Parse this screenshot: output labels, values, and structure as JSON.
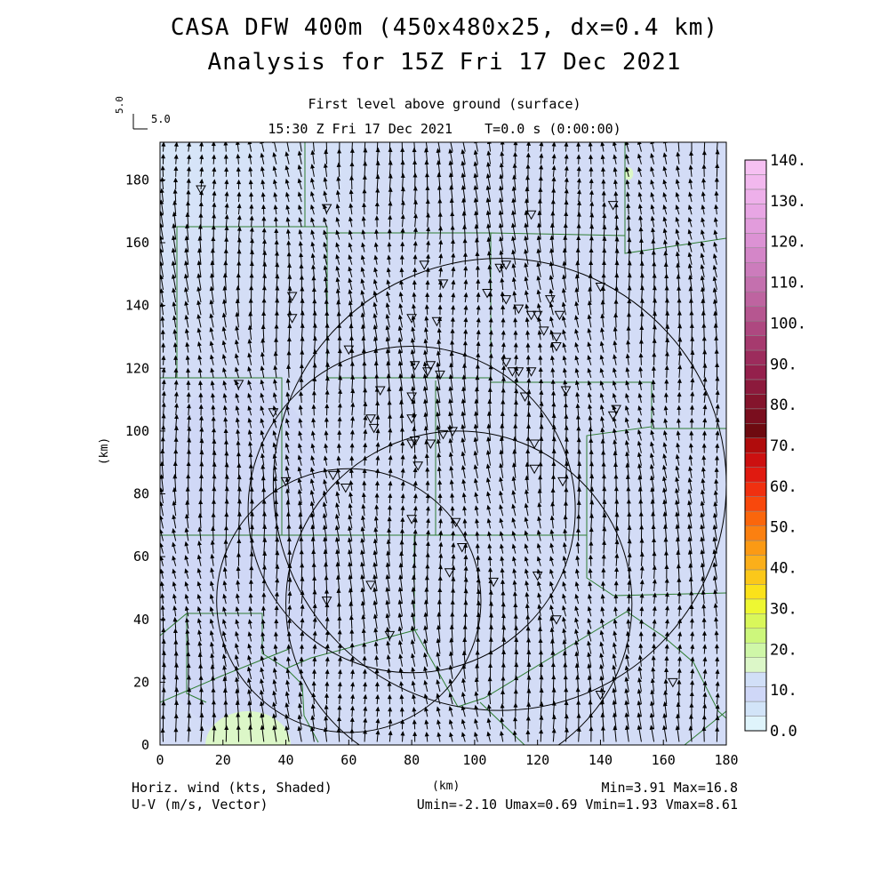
{
  "title": {
    "line1": "CASA DFW 400m (450x480x25, dx=0.4 km)",
    "line2": "Analysis for 15Z Fri 17 Dec 2021"
  },
  "subtitle": {
    "level": "First level above ground (surface)",
    "time": "15:30 Z Fri 17 Dec 2021    T=0.0 s (0:00:00)"
  },
  "reference_vector": {
    "label": "5.0",
    "label_rotated": "5.0"
  },
  "axes": {
    "x_label": "(km)",
    "y_label": "(km)",
    "x_ticks": [
      "0",
      "20",
      "40",
      "60",
      "80",
      "100",
      "120",
      "140",
      "160",
      "180"
    ],
    "y_ticks": [
      "0",
      "20",
      "40",
      "60",
      "80",
      "100",
      "120",
      "140",
      "160",
      "180"
    ],
    "x_range_km": [
      0,
      180
    ],
    "y_range_km": [
      0,
      192
    ]
  },
  "colorbar": {
    "labels": [
      "0.0",
      "10.",
      "20.",
      "30.",
      "40.",
      "50.",
      "60.",
      "70.",
      "80.",
      "90.",
      "100.",
      "110.",
      "120.",
      "130.",
      "140."
    ],
    "colors": [
      "#dff4fb",
      "#d2e4f8",
      "#cfd7f7",
      "#d1dff7",
      "#dcf7c8",
      "#cff7a8",
      "#cdf77c",
      "#d9f75a",
      "#eef732",
      "#fbe21a",
      "#fbc81a",
      "#fbaf1a",
      "#fb9a14",
      "#fb8010",
      "#fa660c",
      "#f8480c",
      "#f03010",
      "#e01a10",
      "#cc1010",
      "#b00c0c",
      "#6e0a10",
      "#7a0e1e",
      "#84142c",
      "#8c1a3c",
      "#94204c",
      "#9c2c5c",
      "#a63a6e",
      "#ae4880",
      "#b65690",
      "#be64a0",
      "#c470ae",
      "#cc7cbc",
      "#d486c8",
      "#dc92d4",
      "#e29cdc",
      "#e8a6e4",
      "#eeb0ea",
      "#f2b8ee",
      "#f6c0f2"
    ]
  },
  "footer": {
    "left1": "Horiz. wind (kts, Shaded)",
    "left2": "U-V (m/s, Vector)",
    "right1": "Min=3.91 Max=16.8",
    "right2": "Umin=-2.10 Umax=0.69 Vmin=1.93 Vmax=8.61"
  },
  "field_colors": {
    "base": "#d3dcf6",
    "light": "#dcf2fb",
    "mid": "#cfd6f6",
    "green": "#dcf7c8",
    "county_line": "#2e7d32"
  },
  "radar_rings": [
    {
      "cx_km": 108,
      "cy_km": 83,
      "r_km": 72
    },
    {
      "cx_km": 80,
      "cy_km": 75,
      "r_km": 52
    },
    {
      "cx_km": 95,
      "cy_km": 45,
      "r_km": 55
    },
    {
      "cx_km": 60,
      "cy_km": 46,
      "r_km": 42
    }
  ],
  "station_markers_km": [
    [
      13,
      177
    ],
    [
      53,
      171
    ],
    [
      118,
      169
    ],
    [
      144,
      172
    ],
    [
      108,
      152
    ],
    [
      110,
      153
    ],
    [
      84,
      153
    ],
    [
      90,
      147
    ],
    [
      42,
      143
    ],
    [
      42,
      136
    ],
    [
      60,
      126
    ],
    [
      80,
      136
    ],
    [
      88,
      135
    ],
    [
      104,
      144
    ],
    [
      110,
      142
    ],
    [
      114,
      139
    ],
    [
      118,
      137
    ],
    [
      120,
      137
    ],
    [
      122,
      132
    ],
    [
      124,
      142
    ],
    [
      127,
      137
    ],
    [
      126,
      130
    ],
    [
      126,
      127
    ],
    [
      140,
      146
    ],
    [
      81,
      121
    ],
    [
      85,
      119
    ],
    [
      89,
      118
    ],
    [
      86,
      121
    ],
    [
      110,
      122
    ],
    [
      112,
      119
    ],
    [
      114,
      119
    ],
    [
      118,
      119
    ],
    [
      129,
      113
    ],
    [
      116,
      111
    ],
    [
      80,
      111
    ],
    [
      70,
      113
    ],
    [
      80,
      104
    ],
    [
      67,
      104
    ],
    [
      68,
      101
    ],
    [
      25,
      115
    ],
    [
      36,
      106
    ],
    [
      93,
      100
    ],
    [
      90,
      99
    ],
    [
      81,
      97
    ],
    [
      80,
      96
    ],
    [
      86,
      96
    ],
    [
      119,
      96
    ],
    [
      119,
      88
    ],
    [
      82,
      89
    ],
    [
      128,
      84
    ],
    [
      55,
      86
    ],
    [
      59,
      82
    ],
    [
      40,
      84
    ],
    [
      80,
      72
    ],
    [
      94,
      71
    ],
    [
      96,
      63
    ],
    [
      92,
      55
    ],
    [
      67,
      51
    ],
    [
      106,
      52
    ],
    [
      120,
      54
    ],
    [
      53,
      46
    ],
    [
      73,
      35
    ],
    [
      126,
      40
    ],
    [
      140,
      16
    ],
    [
      163,
      20
    ],
    [
      144,
      105
    ],
    [
      145,
      107
    ]
  ]
}
